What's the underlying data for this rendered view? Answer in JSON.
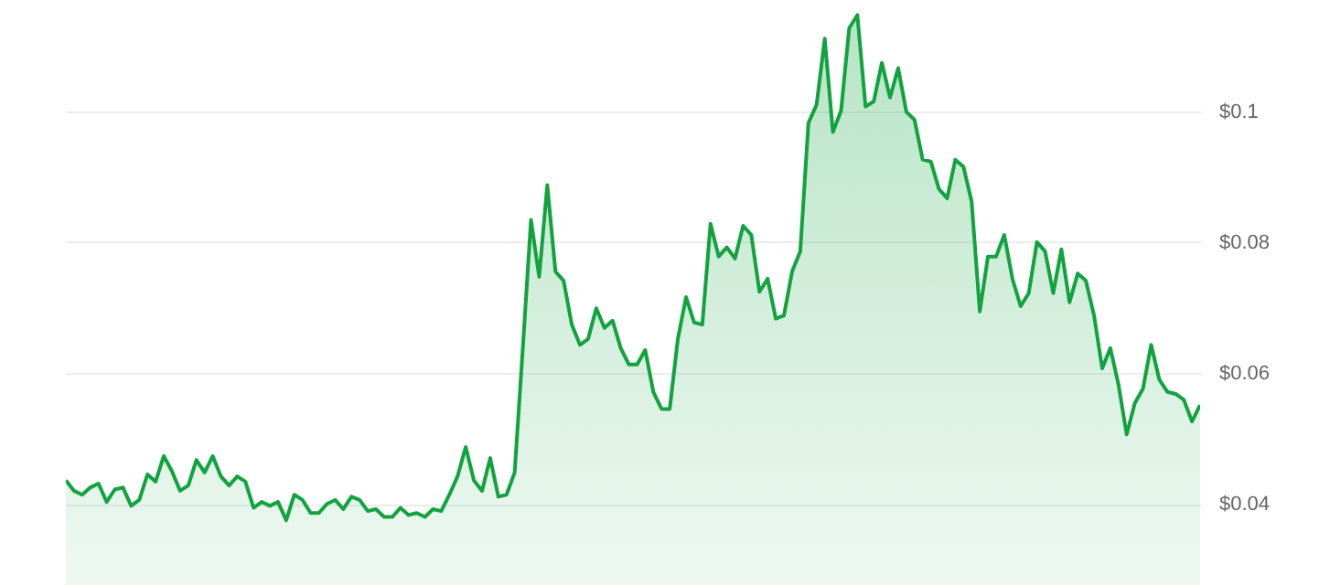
{
  "chart_data": {
    "type": "area",
    "categories": [
      null,
      null,
      null,
      null,
      null,
      null,
      null,
      null,
      null,
      null,
      null,
      null,
      null,
      null,
      null,
      null,
      null,
      null,
      null,
      null,
      null,
      null,
      null,
      null,
      null,
      null,
      null,
      null,
      null,
      null,
      null,
      null,
      null,
      null,
      null,
      null,
      null,
      null,
      null,
      null,
      null,
      null,
      null,
      null,
      null,
      null,
      null,
      null,
      null,
      null,
      null,
      null,
      null,
      null,
      null,
      null,
      null,
      null,
      null,
      null,
      null,
      null,
      null,
      null,
      null,
      null,
      null,
      null,
      null,
      null,
      null,
      null,
      null,
      null,
      null,
      null,
      null,
      null,
      null,
      null,
      null,
      null,
      null,
      null,
      null,
      null,
      null,
      null,
      null,
      null,
      null,
      null,
      null,
      null,
      null,
      null,
      null,
      null,
      null,
      null,
      null,
      null,
      null,
      null,
      null,
      null,
      null,
      null,
      null,
      null,
      null,
      null,
      null,
      null,
      null,
      null,
      null,
      null,
      null,
      null,
      null,
      null,
      null,
      null,
      null,
      null,
      null,
      null,
      null,
      null,
      null,
      null,
      null,
      null,
      null,
      null,
      null,
      null,
      null,
      null
    ],
    "series": [
      {
        "color": "#12a340",
        "values": [
          0.0436,
          0.042,
          0.0414,
          0.0425,
          0.0431,
          0.0403,
          0.0422,
          0.0425,
          0.0397,
          0.0406,
          0.0445,
          0.0434,
          0.0473,
          0.045,
          0.042,
          0.0428,
          0.0467,
          0.0448,
          0.0473,
          0.0442,
          0.0428,
          0.0442,
          0.0434,
          0.0394,
          0.0403,
          0.0397,
          0.0403,
          0.0375,
          0.0414,
          0.0406,
          0.0386,
          0.0386,
          0.04,
          0.0406,
          0.0392,
          0.0411,
          0.0406,
          0.0389,
          0.0392,
          0.038,
          0.038,
          0.0394,
          0.0383,
          0.0386,
          0.038,
          0.0392,
          0.0389,
          0.0414,
          0.0442,
          0.0487,
          0.0436,
          0.042,
          0.047,
          0.0411,
          0.0414,
          0.0448,
          0.0638,
          0.0834,
          0.0747,
          0.0887,
          0.0755,
          0.0741,
          0.0674,
          0.0643,
          0.0652,
          0.0699,
          0.0669,
          0.068,
          0.0638,
          0.0613,
          0.0613,
          0.0635,
          0.0571,
          0.0545,
          0.0545,
          0.0652,
          0.0716,
          0.0677,
          0.0674,
          0.0828,
          0.0778,
          0.0792,
          0.0775,
          0.0825,
          0.0811,
          0.0724,
          0.0744,
          0.0683,
          0.0688,
          0.0755,
          0.0786,
          0.0982,
          0.101,
          0.1111,
          0.0968,
          0.1001,
          0.1127,
          0.1147,
          0.1007,
          0.1015,
          0.1074,
          0.1021,
          0.1066,
          0.0999,
          0.0987,
          0.0926,
          0.0923,
          0.0881,
          0.0867,
          0.0926,
          0.0915,
          0.0862,
          0.0694,
          0.0778,
          0.0778,
          0.0811,
          0.0744,
          0.0702,
          0.0722,
          0.08,
          0.0786,
          0.0722,
          0.0789,
          0.0708,
          0.0752,
          0.0741,
          0.0688,
          0.0607,
          0.0638,
          0.0582,
          0.0506,
          0.0554,
          0.0576,
          0.0643,
          0.059,
          0.0571,
          0.0568,
          0.0559,
          0.0526,
          0.0551
        ]
      }
    ],
    "ylim": [
      0.0276,
      0.117
    ],
    "yticks": [
      {
        "value": 0.04,
        "label": "$0.04"
      },
      {
        "value": 0.06,
        "label": "$0.06"
      },
      {
        "value": 0.08,
        "label": "$0.08"
      },
      {
        "value": 0.1,
        "label": "$0.1"
      }
    ],
    "grid": "y",
    "tick_labels": "y",
    "line_style": "solid",
    "marker": "none"
  }
}
